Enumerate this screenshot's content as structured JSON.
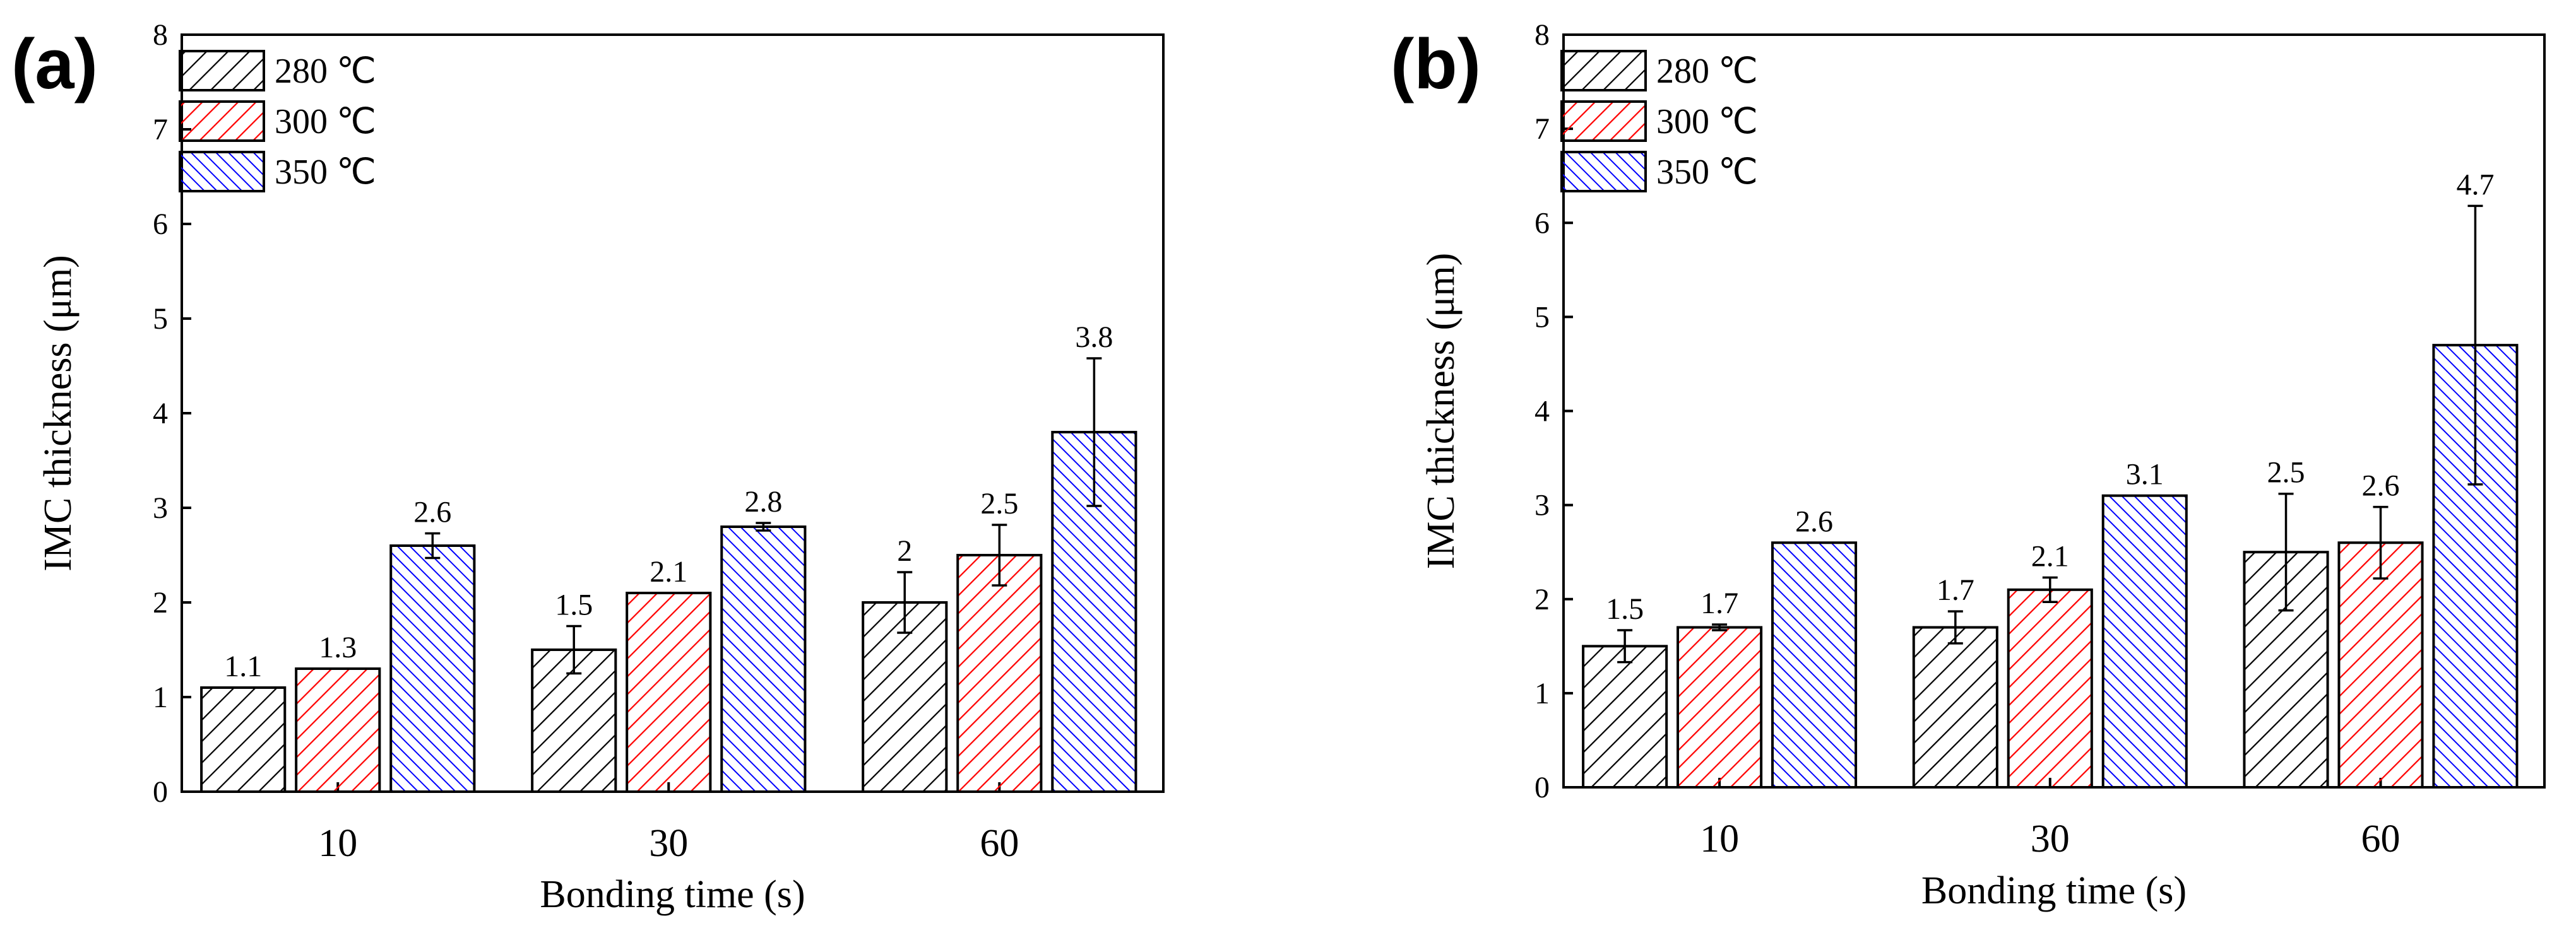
{
  "chart_data": [
    {
      "panel": "(a)",
      "type": "bar",
      "categories": [
        "10",
        "30",
        "60"
      ],
      "xlabel": "Bonding time (s)",
      "ylabel": "IMC thickness (μm)",
      "ylim": [
        0,
        8
      ],
      "yticks": [
        "0",
        "1",
        "2",
        "3",
        "4",
        "5",
        "6",
        "7",
        "8"
      ],
      "legend_position": "top-left",
      "series": [
        {
          "name": "280 ℃",
          "color": "#000000",
          "values": [
            1.1,
            1.5,
            2.0
          ],
          "labels": [
            "1.1",
            "1.5",
            "2"
          ],
          "errors": [
            0.0,
            0.25,
            0.32
          ]
        },
        {
          "name": "300 ℃",
          "color": "#ff0000",
          "values": [
            1.3,
            2.1,
            2.5
          ],
          "labels": [
            "1.3",
            "2.1",
            "2.5"
          ],
          "errors": [
            0.0,
            0.0,
            0.32
          ]
        },
        {
          "name": "350 ℃",
          "color": "#0000ff",
          "values": [
            2.6,
            2.8,
            3.8
          ],
          "labels": [
            "2.6",
            "2.8",
            "3.8"
          ],
          "errors": [
            0.13,
            0.04,
            0.78
          ]
        }
      ]
    },
    {
      "panel": "(b)",
      "type": "bar",
      "categories": [
        "10",
        "30",
        "60"
      ],
      "xlabel": "Bonding time (s)",
      "ylabel": "IMC thickness (μm)",
      "ylim": [
        0,
        8
      ],
      "yticks": [
        "0",
        "1",
        "2",
        "3",
        "4",
        "5",
        "6",
        "7",
        "8"
      ],
      "legend_position": "top-left",
      "series": [
        {
          "name": "280 ℃",
          "color": "#000000",
          "values": [
            1.5,
            1.7,
            2.5
          ],
          "labels": [
            "1.5",
            "1.7",
            "2.5"
          ],
          "errors": [
            0.17,
            0.17,
            0.62
          ]
        },
        {
          "name": "300 ℃",
          "color": "#ff0000",
          "values": [
            1.7,
            2.1,
            2.6
          ],
          "labels": [
            "1.7",
            "2.1",
            "2.6"
          ],
          "errors": [
            0.03,
            0.13,
            0.38
          ]
        },
        {
          "name": "350 ℃",
          "color": "#0000ff",
          "values": [
            2.6,
            3.1,
            4.7
          ],
          "labels": [
            "2.6",
            "3.1",
            "4.7"
          ],
          "errors": [
            0.0,
            0.0,
            1.48
          ]
        }
      ]
    }
  ]
}
